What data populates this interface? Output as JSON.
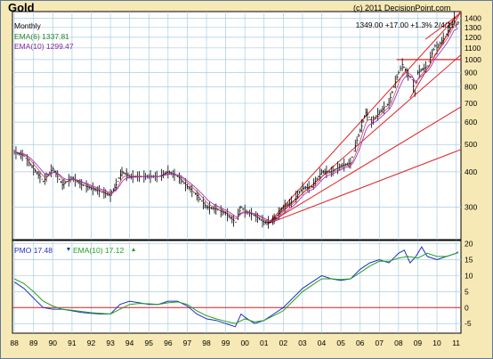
{
  "chart_data": [
    {
      "type": "line",
      "title": "Gold",
      "subtitle": "Monthly",
      "copyright": "(c) 2011 DecisionPoint.com",
      "last_quote": "1349.00 +17.00 +1.3% 2/4/11",
      "x_ticks": [
        "88",
        "89",
        "90",
        "91",
        "92",
        "93",
        "94",
        "95",
        "96",
        "97",
        "98",
        "99",
        "00",
        "01",
        "02",
        "03",
        "04",
        "05",
        "06",
        "07",
        "08",
        "09",
        "10",
        "11"
      ],
      "xlim": [
        1987.9,
        2011.25
      ],
      "y_log": true,
      "ylim": [
        230,
        1480
      ],
      "y_ticks": [
        300,
        400,
        500,
        600,
        700,
        800,
        900,
        1000,
        1100,
        1200,
        1300,
        1400
      ],
      "y_tick_labels": [
        "300",
        "400",
        "500",
        "600",
        "700",
        "800",
        "900",
        "1000",
        "1100",
        "1200",
        "1300",
        "1400"
      ],
      "grid": true,
      "legend": "top-left",
      "series": [
        {
          "name": "price",
          "style": "ohlc",
          "color": "#000000",
          "x": [
            1988.0,
            1988.5,
            1989.0,
            1989.5,
            1990.0,
            1990.5,
            1991.0,
            1991.5,
            1992.0,
            1992.5,
            1993.0,
            1993.3,
            1993.6,
            1994.0,
            1994.5,
            1995.0,
            1995.5,
            1996.0,
            1996.5,
            1997.0,
            1997.5,
            1998.0,
            1998.5,
            1999.0,
            1999.5,
            1999.8,
            2000.0,
            2000.5,
            2001.0,
            2001.3,
            2001.6,
            2002.0,
            2002.5,
            2003.0,
            2003.5,
            2004.0,
            2004.5,
            2005.0,
            2005.5,
            2006.0,
            2006.3,
            2006.6,
            2007.0,
            2007.5,
            2008.0,
            2008.2,
            2008.5,
            2008.7,
            2008.85,
            2009.0,
            2009.5,
            2009.9,
            2010.0,
            2010.5,
            2010.9,
            2011.0,
            2011.1
          ],
          "values": [
            470,
            455,
            410,
            370,
            410,
            360,
            380,
            360,
            350,
            340,
            330,
            360,
            400,
            385,
            385,
            385,
            385,
            400,
            385,
            355,
            330,
            300,
            295,
            285,
            265,
            300,
            290,
            280,
            265,
            265,
            275,
            300,
            315,
            350,
            355,
            400,
            400,
            420,
            430,
            560,
            650,
            600,
            650,
            700,
            900,
            960,
            880,
            850,
            760,
            900,
            950,
            1120,
            1100,
            1230,
            1400,
            1330,
            1349
          ]
        },
        {
          "name": "EMA(6)",
          "value_label": "EMA(6) 1337.81",
          "color": "#c05050"
        },
        {
          "name": "EMA(10)",
          "value_label": "EMA(10) 1299.47",
          "color": "#a020c0"
        }
      ],
      "annotations": [
        {
          "type": "trendline",
          "color": "#e02020",
          "from": [
            2001.2,
            262
          ],
          "to": [
            2011.25,
            1480
          ]
        },
        {
          "type": "trendline",
          "color": "#e02020",
          "from": [
            2001.2,
            262
          ],
          "to": [
            2011.25,
            1040
          ]
        },
        {
          "type": "trendline",
          "color": "#e02020",
          "from": [
            2001.2,
            262
          ],
          "to": [
            2011.25,
            680
          ]
        },
        {
          "type": "trendline",
          "color": "#e02020",
          "from": [
            2001.2,
            262
          ],
          "to": [
            2011.25,
            480
          ]
        },
        {
          "type": "trendline",
          "color": "#e02020",
          "from": [
            2008.6,
            730
          ],
          "to": [
            2011.25,
            1480
          ]
        },
        {
          "type": "trendline",
          "color": "#e02020",
          "from": [
            2009.4,
            1180
          ],
          "to": [
            2011.1,
            1440
          ]
        },
        {
          "type": "hline",
          "color": "#e02020",
          "y": 1000,
          "from": 2007.9,
          "to": 2011.25
        }
      ]
    },
    {
      "type": "line",
      "legend": "top-left",
      "xlim": [
        1987.9,
        2011.25
      ],
      "ylim": [
        -8,
        21
      ],
      "y_ticks": [
        -5,
        0,
        5,
        10,
        15,
        20
      ],
      "y_tick_labels": [
        "-5",
        "0",
        "5",
        "10",
        "15",
        "20"
      ],
      "grid": true,
      "zero_line": {
        "y": 0,
        "color": "#e02020"
      },
      "series": [
        {
          "name": "PMO",
          "value_label": "PMO 17.48",
          "arrow": "down",
          "arrow_color": "#2030c0",
          "color": "#2030c0",
          "x": [
            1988.0,
            1988.5,
            1989.0,
            1989.5,
            1990.0,
            1990.5,
            1991.0,
            1991.5,
            1992.0,
            1992.5,
            1993.0,
            1993.5,
            1994.0,
            1994.5,
            1995.0,
            1995.5,
            1996.0,
            1996.5,
            1997.0,
            1997.5,
            1998.0,
            1998.5,
            1999.0,
            1999.5,
            1999.8,
            2000.0,
            2000.5,
            2001.0,
            2001.5,
            2002.0,
            2002.5,
            2003.0,
            2003.5,
            2004.0,
            2004.5,
            2005.0,
            2005.5,
            2006.0,
            2006.5,
            2007.0,
            2007.5,
            2008.0,
            2008.3,
            2008.6,
            2008.9,
            2009.2,
            2009.5,
            2010.0,
            2010.5,
            2011.0,
            2011.1
          ],
          "values": [
            8,
            6,
            3,
            0,
            -0.5,
            -0.5,
            -1,
            -1.5,
            -1.8,
            -2,
            -2,
            1,
            2,
            1.5,
            1,
            1,
            2,
            2,
            0.5,
            -2,
            -3.5,
            -4,
            -5,
            -6,
            -2,
            -3,
            -5,
            -4,
            -2,
            0,
            3,
            6,
            8,
            10,
            9,
            8.5,
            9,
            12,
            14,
            15,
            14,
            17,
            18,
            14,
            16,
            19,
            16,
            15,
            16,
            17,
            17.48
          ]
        },
        {
          "name": "EMA(10)",
          "value_label": "EMA(10) 17.12",
          "arrow": "up",
          "arrow_color": "#20a020",
          "color": "#20a020",
          "x": [
            1988.0,
            1988.5,
            1989.0,
            1989.5,
            1990.0,
            1990.5,
            1991.0,
            1991.5,
            1992.0,
            1992.5,
            1993.0,
            1993.5,
            1994.0,
            1994.5,
            1995.0,
            1995.5,
            1996.0,
            1996.5,
            1997.0,
            1997.5,
            1998.0,
            1998.5,
            1999.0,
            1999.5,
            2000.0,
            2000.5,
            2001.0,
            2001.5,
            2002.0,
            2002.5,
            2003.0,
            2003.5,
            2004.0,
            2004.5,
            2005.0,
            2005.5,
            2006.0,
            2006.5,
            2007.0,
            2007.5,
            2008.0,
            2008.5,
            2009.0,
            2009.5,
            2010.0,
            2010.5,
            2011.0,
            2011.1
          ],
          "values": [
            9,
            7.5,
            5,
            2,
            0.5,
            -0.5,
            -0.8,
            -1.2,
            -1.6,
            -1.8,
            -2,
            -0.5,
            1,
            1.3,
            1.2,
            1,
            1.5,
            1.8,
            1,
            -1,
            -2.5,
            -3.5,
            -4.3,
            -5,
            -3.5,
            -4.5,
            -4,
            -2.5,
            -1,
            2,
            5,
            7,
            9,
            9,
            8.8,
            9,
            11,
            13,
            14.5,
            14.5,
            15.5,
            16,
            15.5,
            17,
            16,
            16,
            17,
            17.12
          ]
        }
      ]
    }
  ]
}
